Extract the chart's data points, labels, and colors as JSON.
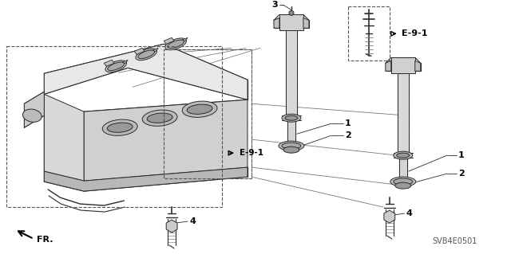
{
  "bg_color": "#ffffff",
  "diagram_code": "SVB4E0501",
  "line_color": "#2a2a2a",
  "gray_fill": "#c8c8c8",
  "light_fill": "#e8e8e8",
  "fig_width": 6.4,
  "fig_height": 3.19,
  "dpi": 100,
  "labels": {
    "item1": "1",
    "item2": "2",
    "item3": "3",
    "item4": "4",
    "ref": "E-9-1",
    "fr": "FR."
  }
}
